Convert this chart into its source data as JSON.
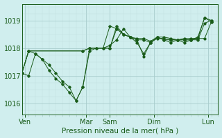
{
  "background_color": "#d0eeee",
  "line_color": "#1a5c1a",
  "grid_color_major": "#a8cccc",
  "grid_color_minor": "#c0dede",
  "ylabel_ticks": [
    1016,
    1017,
    1018,
    1019
  ],
  "xlim": [
    0,
    29
  ],
  "ylim": [
    1015.6,
    1019.6
  ],
  "xlabel": "Pression niveau de la mer( hPa )",
  "xlabel_fontsize": 7.5,
  "tick_fontsize": 7,
  "xtick_labels": [
    "Ven",
    "Mar",
    "Sam",
    "Dim",
    "Lun"
  ],
  "xtick_positions": [
    0.5,
    9.5,
    13,
    19.5,
    27.5
  ],
  "series": [
    {
      "x": [
        0,
        1,
        2,
        3,
        4,
        5,
        6,
        7,
        8,
        9,
        10,
        11,
        12,
        13,
        14,
        15,
        16,
        17,
        18,
        19,
        20,
        21,
        22,
        23,
        24,
        25,
        26,
        27,
        28
      ],
      "y": [
        1017.1,
        1017.0,
        1017.8,
        1017.6,
        1017.4,
        1017.1,
        1016.8,
        1016.6,
        1016.1,
        1016.6,
        1017.9,
        1018.0,
        1018.0,
        1018.1,
        1018.3,
        1018.7,
        1018.4,
        1018.2,
        1017.8,
        1018.2,
        1018.4,
        1018.3,
        1018.2,
        1018.3,
        1018.2,
        1018.3,
        1018.3,
        1018.9,
        1019.0
      ]
    },
    {
      "x": [
        0,
        1,
        2,
        3,
        4,
        5,
        6,
        7,
        8,
        9,
        10,
        11,
        12,
        13,
        14,
        15,
        16,
        17,
        18,
        19,
        20,
        21,
        22,
        23,
        24,
        25,
        26,
        27,
        28
      ],
      "y": [
        1017.1,
        1017.9,
        1017.8,
        1017.6,
        1017.2,
        1016.9,
        1016.7,
        1016.4,
        1016.1,
        1016.6,
        1018.0,
        1018.0,
        1018.0,
        1018.8,
        1018.7,
        1018.5,
        1018.4,
        1018.3,
        1017.7,
        1018.2,
        1018.4,
        1018.3,
        1018.3,
        1018.3,
        1018.3,
        1018.3,
        1018.4,
        1019.1,
        1019.0
      ]
    },
    {
      "x": [
        0,
        1,
        9,
        10,
        13,
        14,
        15,
        16,
        17,
        18,
        19,
        20,
        21,
        22,
        23,
        24,
        25,
        26,
        27,
        28
      ],
      "y": [
        1017.1,
        1017.9,
        1017.9,
        1018.0,
        1018.0,
        1018.7,
        1018.5,
        1018.4,
        1018.3,
        1018.3,
        1018.2,
        1018.35,
        1018.35,
        1018.3,
        1018.3,
        1018.3,
        1018.3,
        1018.35,
        1018.35,
        1018.95
      ]
    },
    {
      "x": [
        0,
        1,
        9,
        10,
        13,
        14,
        15,
        16,
        17,
        18,
        19,
        20,
        21,
        22,
        23,
        24,
        25,
        26,
        27,
        28
      ],
      "y": [
        1017.1,
        1017.9,
        1017.9,
        1018.0,
        1018.0,
        1018.8,
        1018.5,
        1018.4,
        1018.35,
        1018.35,
        1018.25,
        1018.4,
        1018.4,
        1018.35,
        1018.3,
        1018.35,
        1018.35,
        1018.35,
        1019.1,
        1018.95
      ]
    }
  ],
  "figsize": [
    3.2,
    2.0
  ],
  "dpi": 100
}
